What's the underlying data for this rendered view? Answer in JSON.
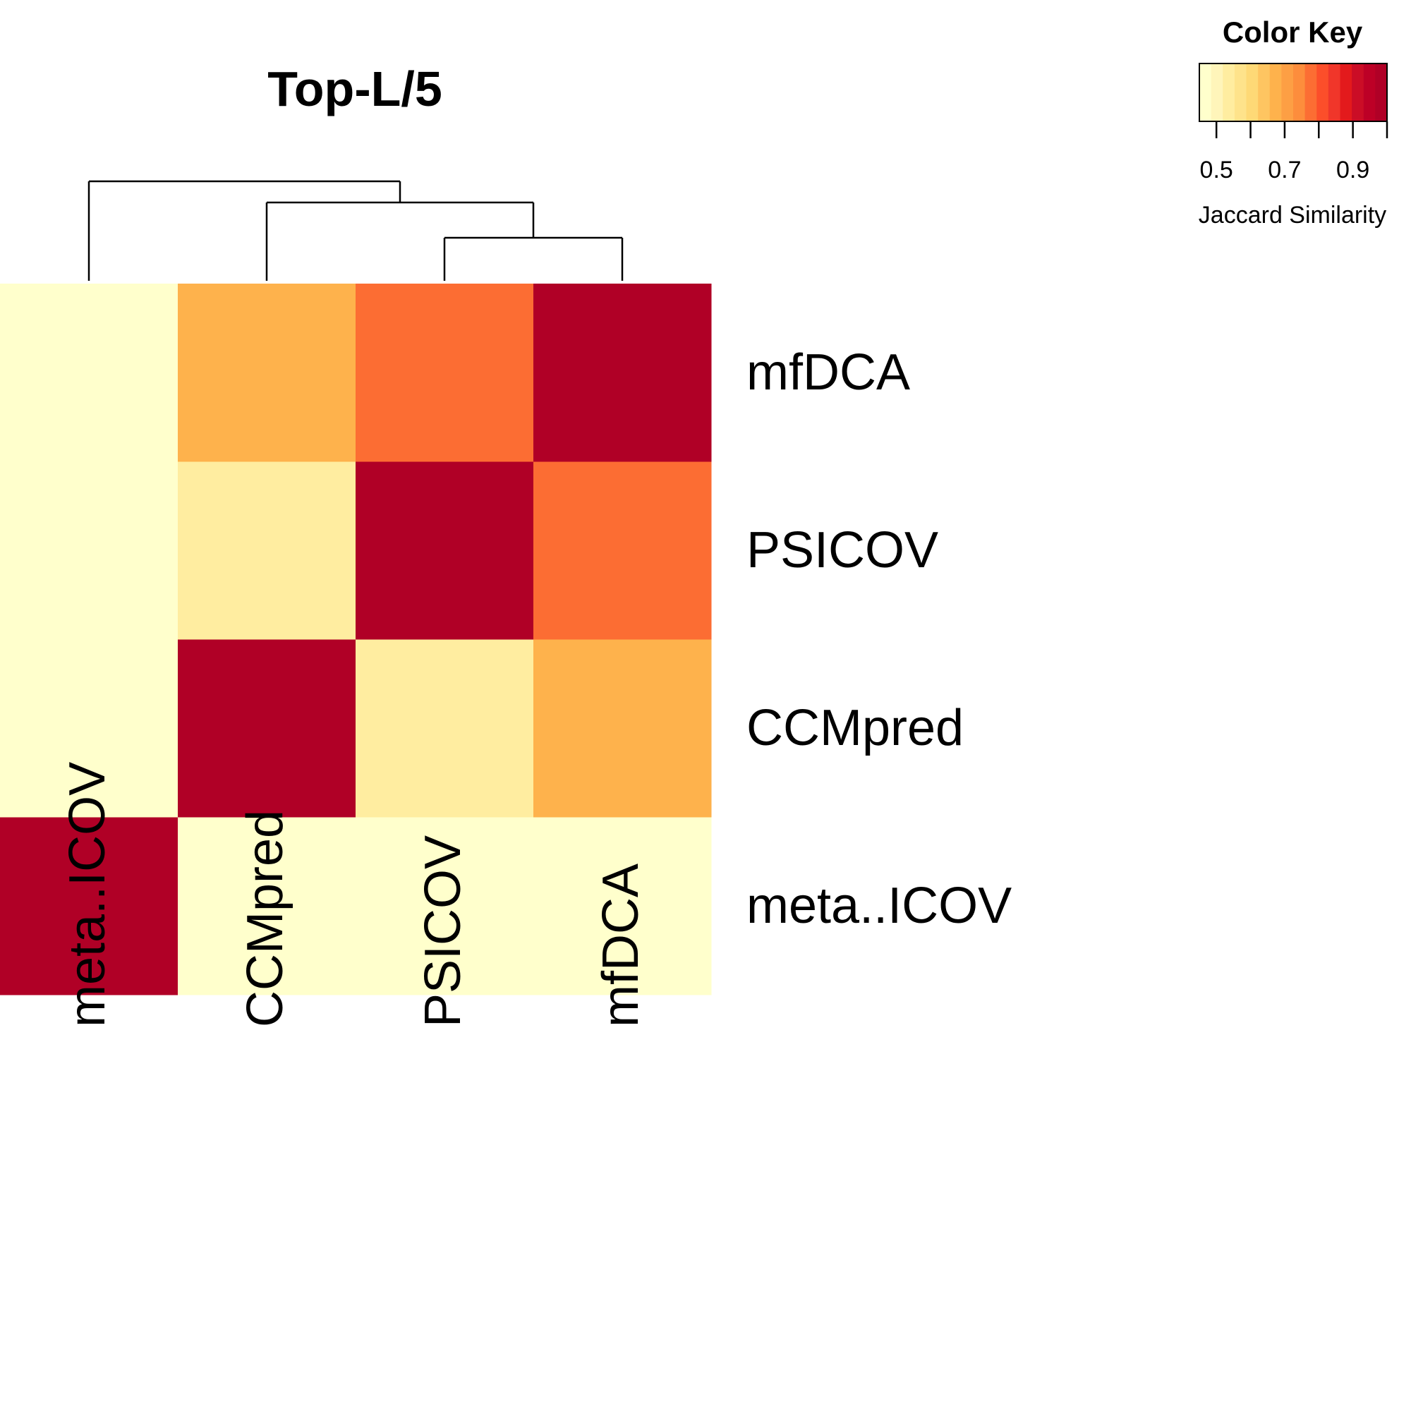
{
  "chart_data": {
    "type": "heatmap",
    "title": "Top-L/5",
    "rows": [
      "meta..ICOV",
      "CCMpred",
      "PSICOV",
      "mfDCA"
    ],
    "columns": [
      "meta..ICOV",
      "CCMpred",
      "PSICOV",
      "mfDCA"
    ],
    "values": [
      [
        1.0,
        0.45,
        0.45,
        0.45
      ],
      [
        0.45,
        1.0,
        0.55,
        0.68
      ],
      [
        0.45,
        0.55,
        1.0,
        0.78
      ],
      [
        0.45,
        0.68,
        0.78,
        1.0
      ]
    ],
    "dendrogram": {
      "merges": [
        [
          "PSICOV",
          "mfDCA"
        ],
        [
          "CCMpred",
          "PSICOV+mfDCA"
        ],
        [
          "meta..ICOV",
          "CCMpred+PSICOV+mfDCA"
        ]
      ]
    },
    "color_key": {
      "title": "Color Key",
      "xlabel": "Jaccard Similarity",
      "range": [
        0.45,
        1.0
      ],
      "ticks": [
        "0.5",
        "0.7",
        "0.9"
      ],
      "tick_values": [
        0.5,
        0.6,
        0.7,
        0.8,
        0.9,
        1.0
      ],
      "labeled_tick_values": [
        0.5,
        0.7,
        0.9
      ],
      "colors": [
        "#FFFFCC",
        "#FFF5BA",
        "#FFEDA0",
        "#FEE38B",
        "#FED976",
        "#FEC561",
        "#FEB24C",
        "#FD9F44",
        "#FD8D3C",
        "#FC6D33",
        "#FC4E2A",
        "#F0362A",
        "#E31A1C",
        "#CB0D26",
        "#BD0026",
        "#B00026"
      ]
    },
    "legend_position": "top-right"
  }
}
